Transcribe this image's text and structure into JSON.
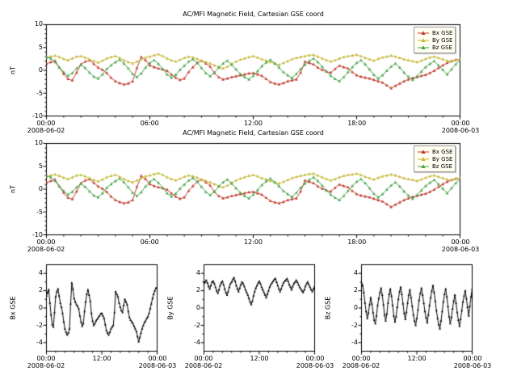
{
  "figure": {
    "background": "#ffffff",
    "description": "Stacked time-series plots of ACE MFI magnetic field data in GSE coordinates for 2008-06-02"
  },
  "chart_data": {
    "type": "line",
    "title": "AC/MFI  Magnetic Field, Cartesian GSE coord",
    "x_unit": "hours since 2008-06-02 00:00",
    "x_range_hours": [
      0,
      24
    ],
    "sampling": "97 points at 15-minute cadence from 2008-06-02 00:00 to 2008-06-03 00:00",
    "legend_position": "upper right",
    "series": [
      {
        "name": "Bx GSE",
        "color": "#c03a2b",
        "values": [
          1.4,
          1.8,
          2.1,
          0.6,
          -0.8,
          -1.9,
          -2.2,
          -0.5,
          1.3,
          1.9,
          2.2,
          1.4,
          0.6,
          0.1,
          -0.6,
          -1.6,
          -2.4,
          -2.8,
          -3.1,
          -2.9,
          -2.4,
          0.5,
          2.9,
          2.2,
          1.1,
          0.7,
          0.4,
          0.2,
          -0.1,
          -0.9,
          -1.6,
          -2.1,
          -1.8,
          -0.4,
          0.7,
          1.6,
          2.1,
          1.5,
          0.8,
          -0.6,
          -1.5,
          -2.0,
          -1.8,
          -1.5,
          -1.3,
          -1.1,
          -0.9,
          -0.7,
          -0.6,
          -0.9,
          -1.2,
          -1.9,
          -2.6,
          -2.9,
          -3.1,
          -2.8,
          -2.4,
          -2.2,
          -2.0,
          -0.5,
          1.9,
          1.6,
          1.3,
          0.6,
          0.1,
          -0.3,
          -0.5,
          0.3,
          1.0,
          0.7,
          0.4,
          -0.4,
          -1.1,
          -1.4,
          -1.6,
          -1.8,
          -2.1,
          -2.4,
          -2.7,
          -3.3,
          -3.9,
          -3.4,
          -2.9,
          -2.4,
          -2.0,
          -1.7,
          -1.5,
          -1.2,
          -1.0,
          -0.6,
          -0.1,
          0.5,
          1.1,
          1.6,
          2.0,
          2.3,
          2.4
        ]
      },
      {
        "name": "By GSE",
        "color": "#c5b93b",
        "values": [
          2.8,
          3.0,
          3.2,
          2.9,
          2.5,
          2.2,
          2.6,
          3.0,
          3.1,
          2.8,
          2.4,
          2.0,
          1.7,
          2.1,
          2.6,
          2.9,
          3.1,
          2.7,
          2.2,
          1.8,
          1.5,
          1.9,
          2.4,
          2.8,
          3.0,
          3.3,
          3.5,
          3.1,
          2.6,
          2.2,
          1.9,
          2.3,
          2.7,
          3.0,
          2.8,
          2.5,
          2.1,
          1.8,
          1.5,
          1.1,
          0.7,
          0.4,
          0.8,
          1.4,
          1.9,
          2.3,
          2.6,
          2.9,
          3.1,
          2.8,
          2.4,
          2.1,
          1.8,
          1.5,
          1.2,
          1.6,
          2.0,
          2.4,
          2.7,
          2.9,
          3.1,
          3.3,
          3.4,
          3.0,
          2.6,
          2.2,
          1.9,
          2.2,
          2.6,
          2.9,
          3.1,
          3.2,
          3.4,
          3.1,
          2.7,
          2.4,
          2.1,
          2.5,
          2.8,
          3.0,
          3.2,
          3.0,
          2.7,
          2.4,
          2.2,
          2.0,
          1.8,
          2.1,
          2.5,
          2.8,
          3.0,
          2.7,
          2.4,
          2.1,
          1.9,
          2.2,
          2.5
        ]
      },
      {
        "name": "Bz GSE",
        "color": "#46a347",
        "values": [
          2.9,
          2.6,
          1.8,
          0.6,
          -0.4,
          -1.2,
          -0.6,
          0.4,
          1.2,
          0.5,
          -0.5,
          -1.4,
          -1.8,
          -0.9,
          0.3,
          1.1,
          1.8,
          2.3,
          1.5,
          0.4,
          -0.8,
          -1.5,
          -0.7,
          0.6,
          1.6,
          2.2,
          1.4,
          0.3,
          -0.9,
          -1.6,
          -1.0,
          0.1,
          1.0,
          1.9,
          2.4,
          1.6,
          0.5,
          -0.6,
          -1.3,
          -0.5,
          0.6,
          1.5,
          2.1,
          1.2,
          0.2,
          -0.8,
          -1.5,
          -2.0,
          -1.2,
          -0.2,
          0.9,
          1.7,
          2.3,
          1.5,
          0.6,
          -0.4,
          -1.1,
          -1.7,
          -0.8,
          0.3,
          1.2,
          2.0,
          2.6,
          1.8,
          0.8,
          -0.3,
          -1.2,
          -1.9,
          -2.4,
          -1.5,
          -0.4,
          0.7,
          1.6,
          2.2,
          1.3,
          0.2,
          -1.0,
          -1.8,
          -1.1,
          -0.1,
          0.8,
          1.5,
          0.6,
          -0.5,
          -1.4,
          -2.1,
          -1.3,
          -0.3,
          0.7,
          1.4,
          2.0,
          1.1,
          0.1,
          -0.9,
          0.2,
          1.3,
          2.2
        ]
      }
    ],
    "panels": [
      {
        "id": "overview-1",
        "title": "AC/MFI  Magnetic Field, Cartesian GSE coord",
        "ylabel": "nT",
        "ylim": [
          -10,
          10
        ],
        "ytick_vals": [
          10,
          5,
          0,
          -5,
          -10
        ],
        "yticks": [
          "10",
          "5",
          "0",
          "-5",
          "-10"
        ],
        "yminor_step": 1,
        "xtick_hours": [
          0,
          6,
          12,
          18,
          24
        ],
        "xminor_step": 1,
        "xticks": [
          "00:00",
          "06:00",
          "12:00",
          "18:00",
          "00:00"
        ],
        "x_dates": [
          "2008-06-02",
          "2008-06-03"
        ],
        "series": [
          0,
          1,
          2
        ],
        "msize": 1.8,
        "legend": true
      },
      {
        "id": "overview-2",
        "title": "AC/MFI  Magnetic Field, Cartesian GSE coord",
        "ylabel": "nT",
        "ylim": [
          -10,
          10
        ],
        "ytick_vals": [
          10,
          5,
          0,
          -5,
          -10
        ],
        "yticks": [
          "10",
          "5",
          "0",
          "-5",
          "-10"
        ],
        "yminor_step": 1,
        "xtick_hours": [
          0,
          6,
          12,
          18,
          24
        ],
        "xminor_step": 1,
        "xticks": [
          "00:00",
          "06:00",
          "12:00",
          "18:00",
          "00:00"
        ],
        "x_dates": [
          "2008-06-02",
          "2008-06-03"
        ],
        "series": [
          0,
          1,
          2
        ],
        "msize": 1.8,
        "legend": true
      },
      {
        "id": "bx-detail",
        "ylabel": "Bx GSE",
        "ylim": [
          -5,
          5
        ],
        "ytick_vals": [
          4,
          2,
          0,
          -2,
          -4
        ],
        "yticks": [
          "4",
          "2",
          "0",
          "-2",
          "-4"
        ],
        "yminor_step": 1,
        "xtick_hours": [
          0,
          12,
          24
        ],
        "xminor_step": 2,
        "xticks": [
          "00:00",
          "12:00",
          "00:00"
        ],
        "x_dates": [
          "2008-06-02",
          "2008-06-03"
        ],
        "series": [
          0
        ],
        "color": "#000000",
        "msize": 1.4,
        "legend": false
      },
      {
        "id": "by-detail",
        "ylabel": "By GSE",
        "ylim": [
          -5,
          5
        ],
        "ytick_vals": [
          4,
          2,
          0,
          -2,
          -4
        ],
        "yticks": [
          "4",
          "2",
          "0",
          "-2",
          "-4"
        ],
        "yminor_step": 1,
        "xtick_hours": [
          0,
          12,
          24
        ],
        "xminor_step": 2,
        "xticks": [
          "00:00",
          "12:00",
          "00:00"
        ],
        "x_dates": [
          "2008-06-02",
          "2008-06-03"
        ],
        "series": [
          1
        ],
        "color": "#000000",
        "msize": 1.4,
        "legend": false
      },
      {
        "id": "bz-detail",
        "ylabel": "Bz GSE",
        "ylim": [
          -5,
          5
        ],
        "ytick_vals": [
          4,
          2,
          0,
          -2,
          -4
        ],
        "yticks": [
          "4",
          "2",
          "0",
          "-2",
          "-4"
        ],
        "yminor_step": 1,
        "xtick_hours": [
          0,
          12,
          24
        ],
        "xminor_step": 2,
        "xticks": [
          "00:00",
          "12:00",
          "00:00"
        ],
        "x_dates": [
          "2008-06-02",
          "2008-06-03"
        ],
        "series": [
          2
        ],
        "color": "#000000",
        "msize": 1.4,
        "legend": false
      }
    ]
  }
}
